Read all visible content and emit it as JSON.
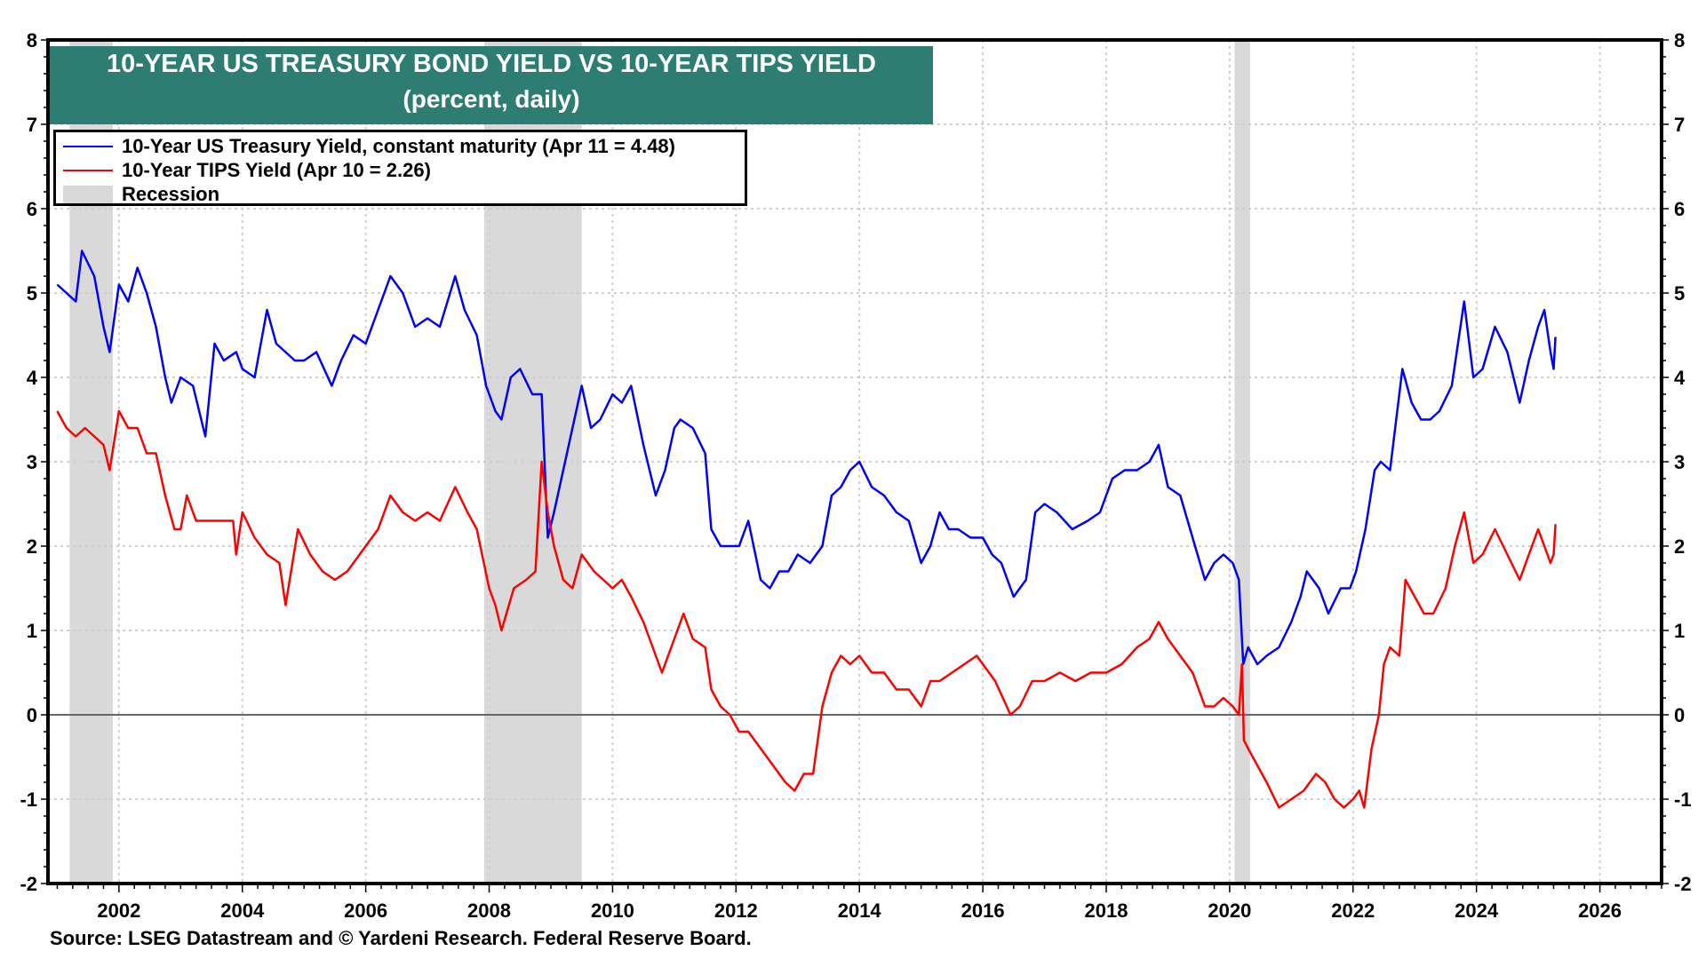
{
  "chart_data": {
    "type": "line",
    "title": "10-YEAR US TREASURY BOND YIELD VS 10-YEAR TIPS YIELD",
    "subtitle": "(percent, daily)",
    "xlabel": "",
    "ylabel": "",
    "xlim": [
      2000.85,
      2027.0
    ],
    "ylim": [
      -2,
      8
    ],
    "x_ticks": [
      2002,
      2004,
      2006,
      2008,
      2010,
      2012,
      2014,
      2016,
      2018,
      2020,
      2022,
      2024,
      2026
    ],
    "y_ticks": [
      -2,
      -1,
      0,
      1,
      2,
      3,
      4,
      5,
      6,
      7,
      8
    ],
    "grid": true,
    "legend_position": "top-left",
    "legend": [
      {
        "label": "10-Year US Treasury Yield, constant maturity (Apr 11 = 4.48)",
        "color": "#0000ff",
        "kind": "line"
      },
      {
        "label": "10-Year TIPS Yield (Apr 10 = 2.26)",
        "color": "#ff0000",
        "kind": "line"
      },
      {
        "label": "Recession",
        "color": "#d9d9d9",
        "kind": "box"
      }
    ],
    "recessions": [
      [
        2001.2,
        2001.9
      ],
      [
        2007.92,
        2009.5
      ],
      [
        2020.08,
        2020.33
      ]
    ],
    "series": [
      {
        "name": "10-Year US Treasury Yield, constant maturity",
        "color": "#0000ff",
        "x": [
          2001.0,
          2001.15,
          2001.3,
          2001.4,
          2001.6,
          2001.75,
          2001.85,
          2002.0,
          2002.15,
          2002.3,
          2002.45,
          2002.6,
          2002.75,
          2002.85,
          2003.0,
          2003.2,
          2003.4,
          2003.55,
          2003.7,
          2003.9,
          2004.0,
          2004.2,
          2004.4,
          2004.55,
          2004.7,
          2004.85,
          2005.0,
          2005.2,
          2005.45,
          2005.6,
          2005.8,
          2006.0,
          2006.2,
          2006.4,
          2006.6,
          2006.8,
          2007.0,
          2007.2,
          2007.45,
          2007.6,
          2007.8,
          2007.95,
          2008.1,
          2008.2,
          2008.35,
          2008.5,
          2008.7,
          2008.85,
          2008.95,
          2009.05,
          2009.2,
          2009.35,
          2009.5,
          2009.65,
          2009.8,
          2010.0,
          2010.15,
          2010.3,
          2010.5,
          2010.7,
          2010.85,
          2011.0,
          2011.1,
          2011.3,
          2011.5,
          2011.6,
          2011.75,
          2011.9,
          2012.05,
          2012.2,
          2012.4,
          2012.55,
          2012.7,
          2012.85,
          2013.0,
          2013.2,
          2013.4,
          2013.55,
          2013.7,
          2013.85,
          2014.0,
          2014.2,
          2014.4,
          2014.6,
          2014.8,
          2015.0,
          2015.15,
          2015.3,
          2015.45,
          2015.6,
          2015.8,
          2016.0,
          2016.15,
          2016.3,
          2016.5,
          2016.7,
          2016.85,
          2017.0,
          2017.2,
          2017.45,
          2017.7,
          2017.9,
          2018.1,
          2018.3,
          2018.5,
          2018.7,
          2018.85,
          2019.0,
          2019.2,
          2019.4,
          2019.6,
          2019.75,
          2019.9,
          2020.05,
          2020.15,
          2020.22,
          2020.3,
          2020.45,
          2020.6,
          2020.8,
          2021.0,
          2021.15,
          2021.25,
          2021.45,
          2021.6,
          2021.8,
          2021.95,
          2022.05,
          2022.2,
          2022.35,
          2022.45,
          2022.6,
          2022.8,
          2022.95,
          2023.1,
          2023.25,
          2023.4,
          2023.6,
          2023.8,
          2023.95,
          2024.1,
          2024.3,
          2024.5,
          2024.7,
          2024.85,
          2025.0,
          2025.1,
          2025.2,
          2025.25,
          2025.28
        ],
        "values": [
          5.1,
          5.0,
          4.9,
          5.5,
          5.2,
          4.6,
          4.3,
          5.1,
          4.9,
          5.3,
          5.0,
          4.6,
          4.0,
          3.7,
          4.0,
          3.9,
          3.3,
          4.4,
          4.2,
          4.3,
          4.1,
          4.0,
          4.8,
          4.4,
          4.3,
          4.2,
          4.2,
          4.3,
          3.9,
          4.2,
          4.5,
          4.4,
          4.8,
          5.2,
          5.0,
          4.6,
          4.7,
          4.6,
          5.2,
          4.8,
          4.5,
          3.9,
          3.6,
          3.5,
          4.0,
          4.1,
          3.8,
          3.8,
          2.1,
          2.4,
          2.9,
          3.4,
          3.9,
          3.4,
          3.5,
          3.8,
          3.7,
          3.9,
          3.2,
          2.6,
          2.9,
          3.4,
          3.5,
          3.4,
          3.1,
          2.2,
          2.0,
          2.0,
          2.0,
          2.3,
          1.6,
          1.5,
          1.7,
          1.7,
          1.9,
          1.8,
          2.0,
          2.6,
          2.7,
          2.9,
          3.0,
          2.7,
          2.6,
          2.4,
          2.3,
          1.8,
          2.0,
          2.4,
          2.2,
          2.2,
          2.1,
          2.1,
          1.9,
          1.8,
          1.4,
          1.6,
          2.4,
          2.5,
          2.4,
          2.2,
          2.3,
          2.4,
          2.8,
          2.9,
          2.9,
          3.0,
          3.2,
          2.7,
          2.6,
          2.1,
          1.6,
          1.8,
          1.9,
          1.8,
          1.6,
          0.6,
          0.8,
          0.6,
          0.7,
          0.8,
          1.1,
          1.4,
          1.7,
          1.5,
          1.2,
          1.5,
          1.5,
          1.7,
          2.2,
          2.9,
          3.0,
          2.9,
          4.1,
          3.7,
          3.5,
          3.5,
          3.6,
          3.9,
          4.9,
          4.0,
          4.1,
          4.6,
          4.3,
          3.7,
          4.2,
          4.6,
          4.8,
          4.3,
          4.1,
          4.48
        ]
      },
      {
        "name": "10-Year TIPS Yield",
        "color": "#ff0000",
        "x": [
          2001.0,
          2001.15,
          2001.3,
          2001.45,
          2001.6,
          2001.75,
          2001.85,
          2002.0,
          2002.15,
          2002.3,
          2002.45,
          2002.6,
          2002.75,
          2002.9,
          2003.0,
          2003.1,
          2003.25,
          2003.3,
          2003.85,
          2003.9,
          2004.0,
          2004.2,
          2004.4,
          2004.6,
          2004.7,
          2004.9,
          2005.1,
          2005.3,
          2005.5,
          2005.7,
          2005.9,
          2006.0,
          2006.2,
          2006.4,
          2006.6,
          2006.8,
          2007.0,
          2007.2,
          2007.45,
          2007.65,
          2007.8,
          2008.0,
          2008.1,
          2008.2,
          2008.4,
          2008.6,
          2008.75,
          2008.85,
          2008.95,
          2009.05,
          2009.2,
          2009.35,
          2009.5,
          2009.7,
          2009.85,
          2010.0,
          2010.15,
          2010.3,
          2010.5,
          2010.65,
          2010.8,
          2011.0,
          2011.15,
          2011.3,
          2011.5,
          2011.6,
          2011.75,
          2011.9,
          2012.05,
          2012.2,
          2012.4,
          2012.6,
          2012.8,
          2012.95,
          2013.1,
          2013.25,
          2013.4,
          2013.55,
          2013.7,
          2013.85,
          2014.0,
          2014.2,
          2014.4,
          2014.6,
          2014.8,
          2015.0,
          2015.15,
          2015.3,
          2015.5,
          2015.7,
          2015.9,
          2016.0,
          2016.2,
          2016.45,
          2016.6,
          2016.8,
          2017.0,
          2017.25,
          2017.5,
          2017.75,
          2018.0,
          2018.25,
          2018.5,
          2018.7,
          2018.85,
          2019.0,
          2019.2,
          2019.4,
          2019.6,
          2019.75,
          2019.9,
          2020.05,
          2020.15,
          2020.2,
          2020.23,
          2020.3,
          2020.45,
          2020.6,
          2020.8,
          2021.0,
          2021.2,
          2021.4,
          2021.55,
          2021.7,
          2021.85,
          2022.0,
          2022.1,
          2022.18,
          2022.3,
          2022.42,
          2022.5,
          2022.6,
          2022.75,
          2022.85,
          2023.0,
          2023.15,
          2023.3,
          2023.5,
          2023.65,
          2023.8,
          2023.95,
          2024.1,
          2024.3,
          2024.5,
          2024.7,
          2024.85,
          2025.0,
          2025.1,
          2025.2,
          2025.25,
          2025.28
        ],
        "values": [
          3.6,
          3.4,
          3.3,
          3.4,
          3.3,
          3.2,
          2.9,
          3.6,
          3.4,
          3.4,
          3.1,
          3.1,
          2.6,
          2.2,
          2.2,
          2.6,
          2.3,
          2.3,
          2.3,
          1.9,
          2.4,
          2.1,
          1.9,
          1.8,
          1.3,
          2.2,
          1.9,
          1.7,
          1.6,
          1.7,
          1.9,
          2.0,
          2.2,
          2.6,
          2.4,
          2.3,
          2.4,
          2.3,
          2.7,
          2.4,
          2.2,
          1.5,
          1.3,
          1.0,
          1.5,
          1.6,
          1.7,
          3.0,
          2.4,
          2.0,
          1.6,
          1.5,
          1.9,
          1.7,
          1.6,
          1.5,
          1.6,
          1.4,
          1.1,
          0.8,
          0.5,
          0.9,
          1.2,
          0.9,
          0.8,
          0.3,
          0.1,
          0.0,
          -0.2,
          -0.2,
          -0.4,
          -0.6,
          -0.8,
          -0.9,
          -0.7,
          -0.7,
          0.1,
          0.5,
          0.7,
          0.6,
          0.7,
          0.5,
          0.5,
          0.3,
          0.3,
          0.1,
          0.4,
          0.4,
          0.5,
          0.6,
          0.7,
          0.6,
          0.4,
          0.0,
          0.1,
          0.4,
          0.4,
          0.5,
          0.4,
          0.5,
          0.5,
          0.6,
          0.8,
          0.9,
          1.1,
          0.9,
          0.7,
          0.5,
          0.1,
          0.1,
          0.2,
          0.1,
          0.0,
          0.6,
          -0.3,
          -0.4,
          -0.6,
          -0.8,
          -1.1,
          -1.0,
          -0.9,
          -0.7,
          -0.8,
          -1.0,
          -1.1,
          -1.0,
          -0.9,
          -1.1,
          -0.4,
          0.0,
          0.6,
          0.8,
          0.7,
          1.6,
          1.4,
          1.2,
          1.2,
          1.5,
          2.0,
          2.4,
          1.8,
          1.9,
          2.2,
          1.9,
          1.6,
          1.9,
          2.2,
          2.0,
          1.8,
          1.9,
          2.26
        ]
      }
    ]
  },
  "footer": {
    "source": "Source: LSEG Datastream and © Yardeni Research. Federal Reserve Board."
  }
}
